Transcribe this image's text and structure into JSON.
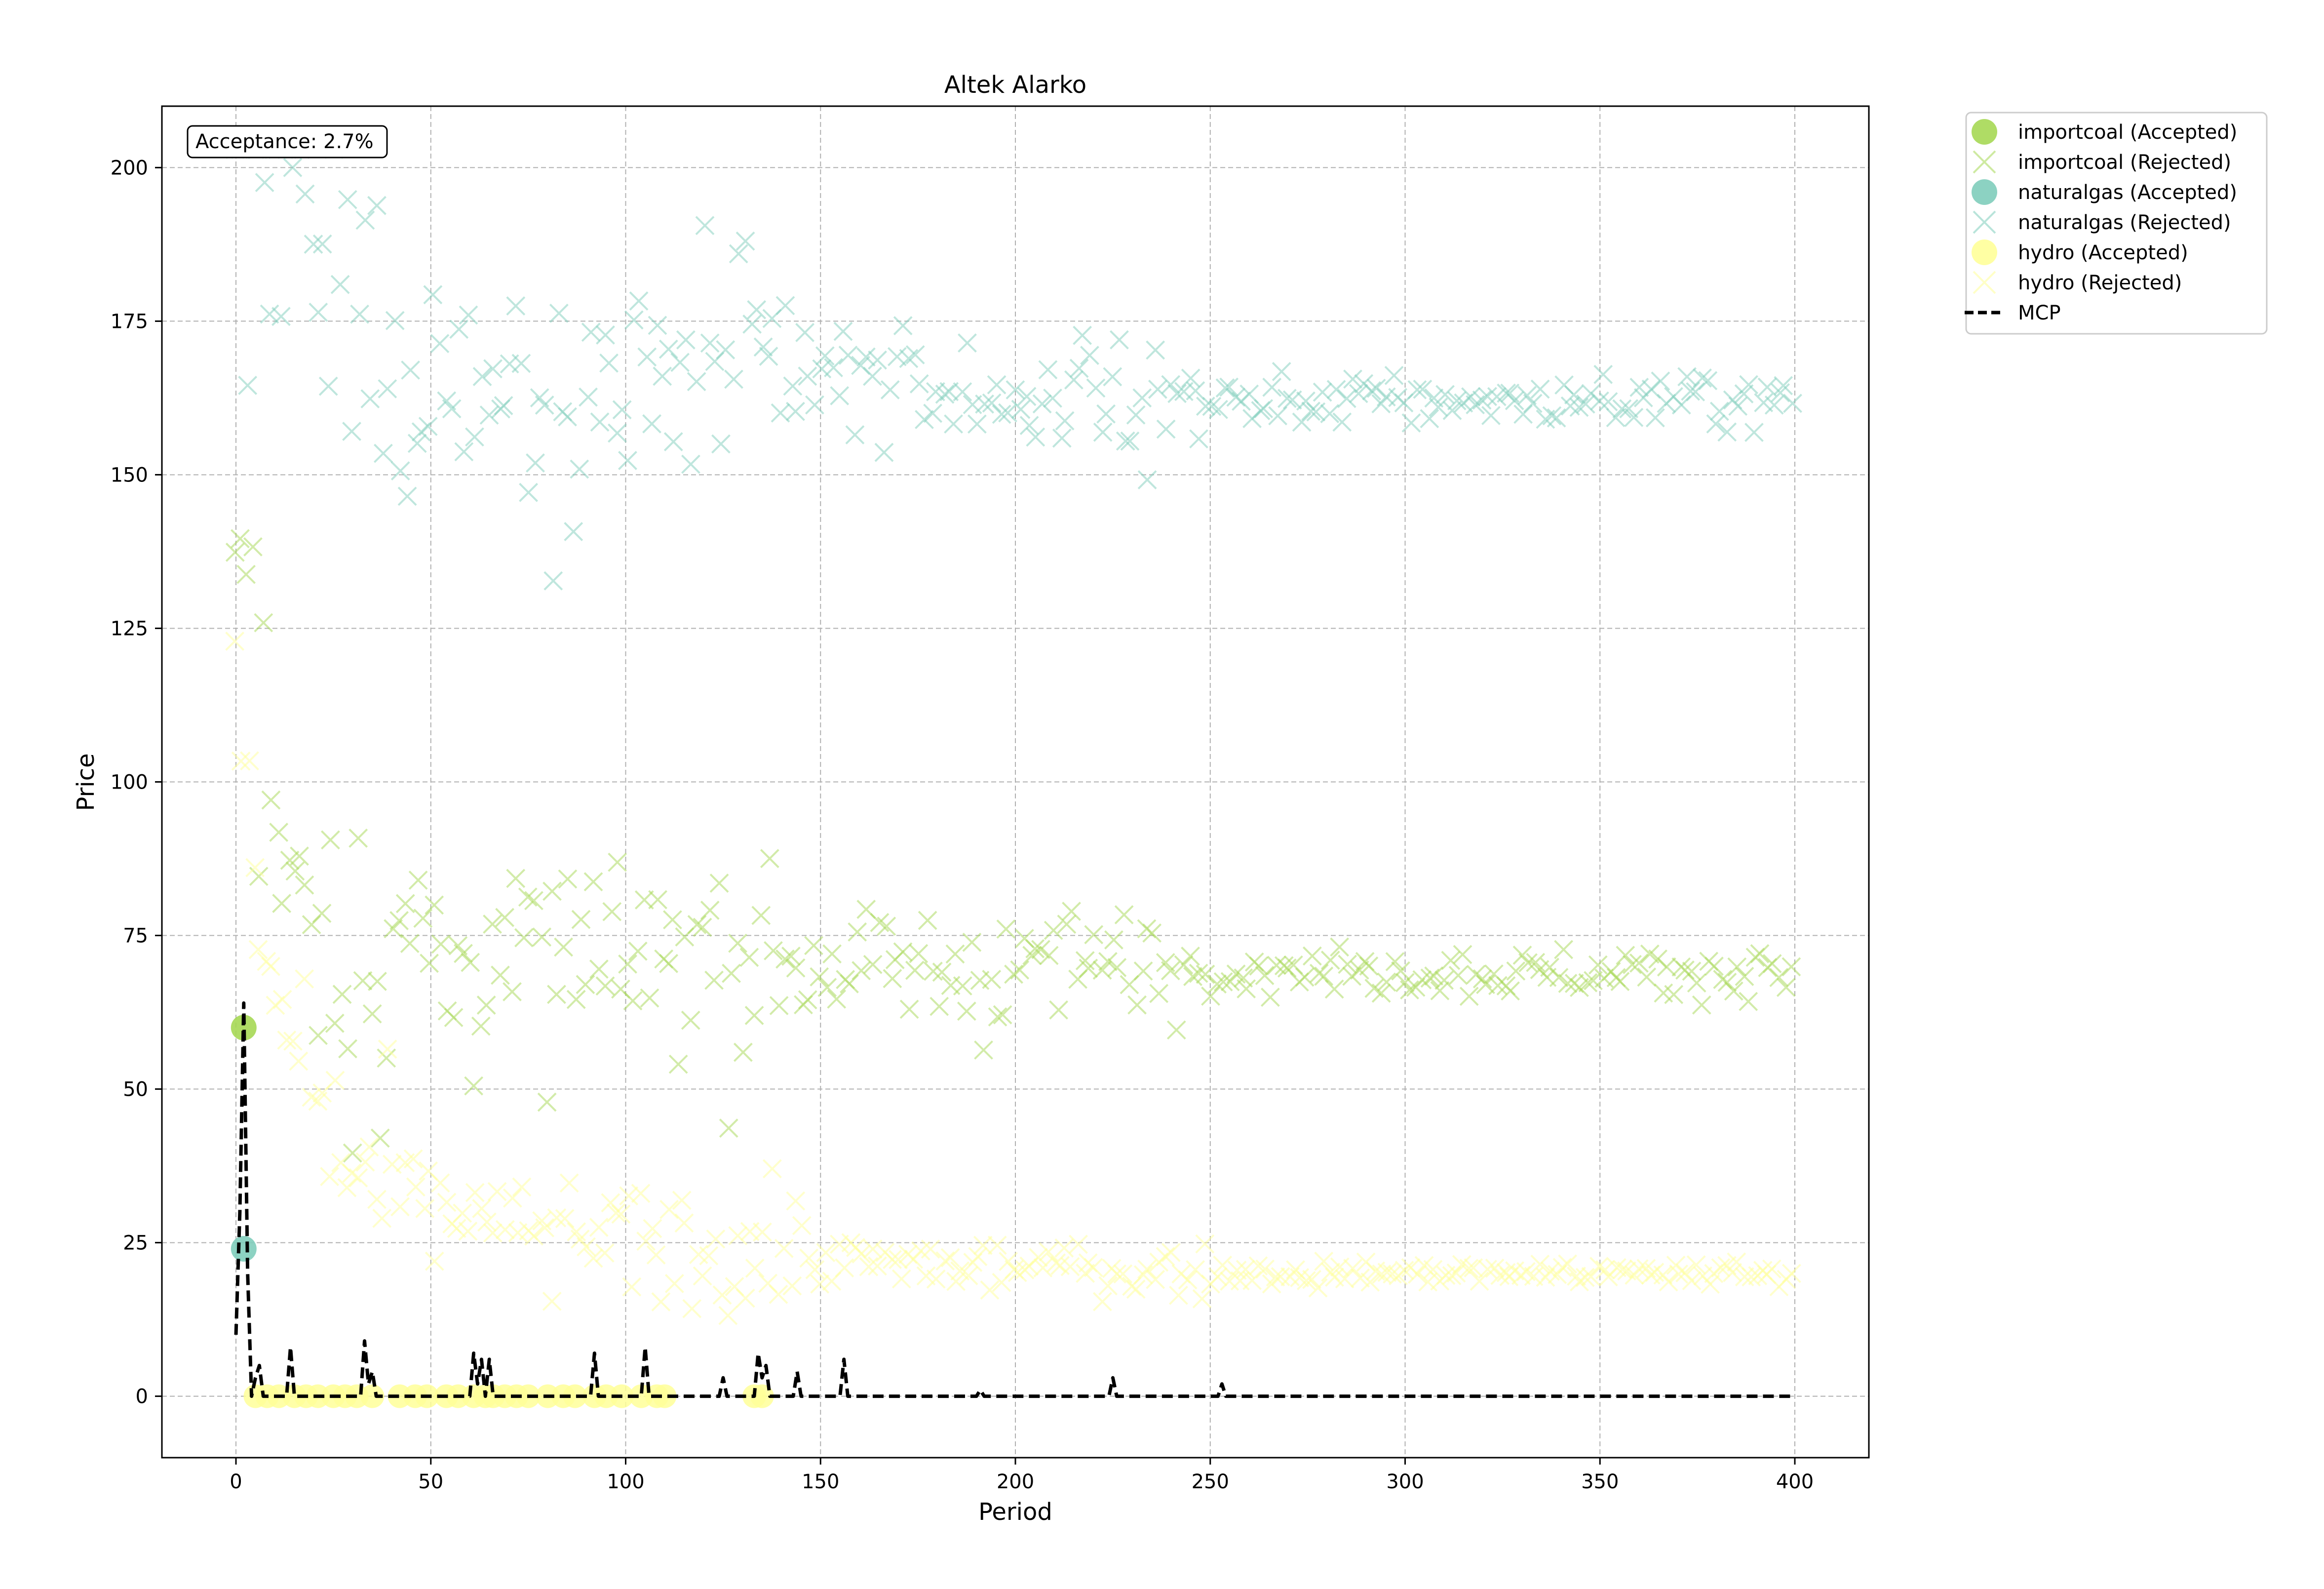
{
  "colors": {
    "importcoal": "#a6d854",
    "naturalgas": "#7fcdbb",
    "hydro": "#ffff99",
    "mcp": "#000000",
    "grid": "#b0b0b0"
  },
  "chart_data": {
    "type": "scatter",
    "title": "Altek Alarko",
    "xlabel": "Period",
    "ylabel": "Price",
    "xlim": [
      -19,
      419
    ],
    "ylim": [
      -10,
      210
    ],
    "xticks": [
      0,
      50,
      100,
      150,
      200,
      250,
      300,
      350,
      400
    ],
    "yticks": [
      0,
      25,
      50,
      75,
      100,
      125,
      150,
      175,
      200
    ],
    "grid": true,
    "legend_position": "outside-top-right",
    "annotation": "Acceptance: 2.7%",
    "legend": [
      "importcoal (Accepted)",
      "importcoal (Rejected)",
      "naturalgas (Accepted)",
      "naturalgas (Rejected)",
      "hydro (Accepted)",
      "hydro (Rejected)",
      "MCP"
    ],
    "accepted": {
      "importcoal": [
        [
          2,
          60
        ]
      ],
      "naturalgas": [
        [
          2,
          24
        ]
      ],
      "hydro": [
        [
          5,
          0
        ],
        [
          8,
          0
        ],
        [
          11,
          0
        ],
        [
          15,
          0
        ],
        [
          18,
          0
        ],
        [
          21,
          0
        ],
        [
          25,
          0
        ],
        [
          28,
          0
        ],
        [
          31,
          0
        ],
        [
          35,
          0
        ],
        [
          42,
          0
        ],
        [
          46,
          0
        ],
        [
          49,
          0
        ],
        [
          54,
          0
        ],
        [
          57,
          0
        ],
        [
          61,
          0
        ],
        [
          64,
          0
        ],
        [
          66,
          0
        ],
        [
          69,
          0
        ],
        [
          72,
          0
        ],
        [
          75,
          0
        ],
        [
          80,
          0
        ],
        [
          84,
          0
        ],
        [
          87,
          0
        ],
        [
          92,
          0
        ],
        [
          95,
          0
        ],
        [
          99,
          0
        ],
        [
          104,
          0
        ],
        [
          108,
          0
        ],
        [
          110,
          0
        ],
        [
          133,
          0
        ],
        [
          135,
          0
        ]
      ]
    },
    "rejected_trends": {
      "importcoal": [
        [
          0,
          140
        ],
        [
          10,
          90
        ],
        [
          30,
          75
        ],
        [
          60,
          70
        ],
        [
          100,
          70
        ],
        [
          150,
          70
        ],
        [
          200,
          70
        ],
        [
          250,
          70
        ],
        [
          300,
          69
        ],
        [
          350,
          69
        ],
        [
          400,
          69
        ]
      ],
      "naturalgas": [
        [
          0,
          200
        ],
        [
          10,
          190
        ],
        [
          30,
          170
        ],
        [
          60,
          165
        ],
        [
          100,
          165
        ],
        [
          150,
          165
        ],
        [
          200,
          163
        ],
        [
          250,
          162
        ],
        [
          300,
          162
        ],
        [
          350,
          162
        ],
        [
          400,
          162
        ]
      ],
      "hydro": [
        [
          0,
          110
        ],
        [
          10,
          60
        ],
        [
          30,
          35
        ],
        [
          60,
          28
        ],
        [
          100,
          25
        ],
        [
          150,
          22
        ],
        [
          200,
          21
        ],
        [
          250,
          20
        ],
        [
          300,
          20
        ],
        [
          350,
          20
        ],
        [
          400,
          20
        ]
      ]
    },
    "mcp": [
      [
        0,
        10
      ],
      [
        1,
        30
      ],
      [
        2,
        64
      ],
      [
        3,
        20
      ],
      [
        4,
        0
      ],
      [
        5,
        3
      ],
      [
        6,
        5
      ],
      [
        7,
        0
      ],
      [
        13,
        0
      ],
      [
        14,
        8
      ],
      [
        15,
        0
      ],
      [
        32,
        0
      ],
      [
        33,
        9
      ],
      [
        34,
        2
      ],
      [
        35,
        4
      ],
      [
        36,
        0
      ],
      [
        60,
        0
      ],
      [
        61,
        7
      ],
      [
        62,
        2
      ],
      [
        63,
        6
      ],
      [
        64,
        0
      ],
      [
        65,
        6
      ],
      [
        66,
        0
      ],
      [
        91,
        0
      ],
      [
        92,
        7
      ],
      [
        93,
        0
      ],
      [
        104,
        0
      ],
      [
        105,
        8
      ],
      [
        106,
        0
      ],
      [
        124,
        0
      ],
      [
        125,
        3
      ],
      [
        126,
        0
      ],
      [
        133,
        0
      ],
      [
        134,
        7
      ],
      [
        135,
        3
      ],
      [
        136,
        5
      ],
      [
        137,
        0
      ],
      [
        143,
        0
      ],
      [
        144,
        4
      ],
      [
        145,
        0
      ],
      [
        155,
        0
      ],
      [
        156,
        6
      ],
      [
        157,
        0
      ],
      [
        190,
        0
      ],
      [
        191,
        1
      ],
      [
        192,
        0
      ],
      [
        224,
        0
      ],
      [
        225,
        3
      ],
      [
        226,
        0
      ],
      [
        252,
        0
      ],
      [
        253,
        2
      ],
      [
        254,
        0
      ],
      [
        400,
        0
      ]
    ]
  }
}
